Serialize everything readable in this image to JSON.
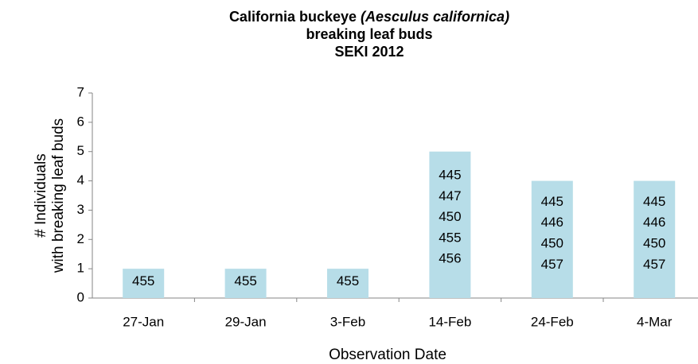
{
  "chart_data": {
    "type": "bar",
    "title_lines": [
      [
        "California buckeye ",
        "(Aesculus californica)"
      ],
      [
        "breaking leaf buds"
      ],
      [
        "SEKI 2012"
      ]
    ],
    "y_label_lines": [
      "# Individuals",
      "with breaking leaf buds"
    ],
    "x_label": "Observation Date",
    "categories": [
      "27-Jan",
      "29-Jan",
      "3-Feb",
      "14-Feb",
      "24-Feb",
      "4-Mar"
    ],
    "values": [
      1,
      1,
      1,
      5,
      4,
      4
    ],
    "bar_labels": [
      [
        "455"
      ],
      [
        "455"
      ],
      [
        "455"
      ],
      [
        "445",
        "447",
        "450",
        "455",
        "456"
      ],
      [
        "445",
        "446",
        "450",
        "457"
      ],
      [
        "445",
        "446",
        "450",
        "457"
      ]
    ],
    "color": "#b7dde8",
    "ylim": [
      0,
      7
    ],
    "yticks": [
      0,
      1,
      2,
      3,
      4,
      5,
      6,
      7
    ],
    "grid": false
  }
}
